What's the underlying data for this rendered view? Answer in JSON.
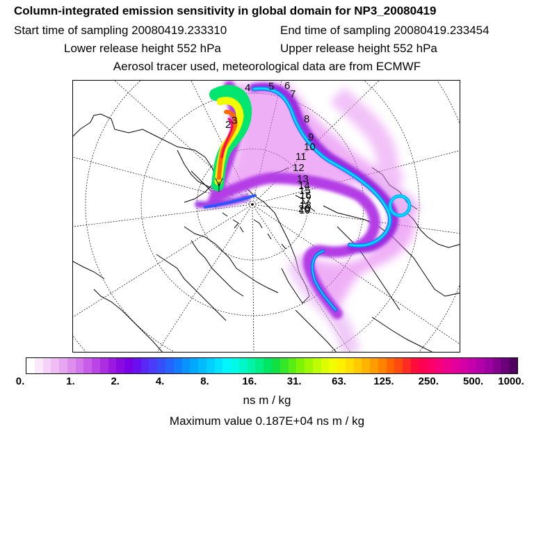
{
  "header": {
    "title": "Column-integrated emission sensitivity in global domain for NP3_20080419",
    "start_time": "Start time of sampling 20080419.233310",
    "end_time": "End time of sampling 20080419.233454",
    "lower_height": "Lower release height  552 hPa",
    "upper_height": "Upper release height  552 hPa",
    "tracer_info": "Aerosol tracer used, meteorological data are from ECMWF"
  },
  "map": {
    "projection": "polar stereographic",
    "trajectory_labels": [
      "2",
      "3",
      "4",
      "5",
      "6",
      "7",
      "8",
      "9",
      "10",
      "11",
      "12",
      "13",
      "14",
      "15",
      "16",
      "17",
      "18",
      "19",
      "20"
    ]
  },
  "colorbar": {
    "tick_labels": [
      "0.",
      "1.",
      "2.",
      "4.",
      "8.",
      "16.",
      "31.",
      "63.",
      "125.",
      "250.",
      "500.",
      "1000."
    ],
    "colors": [
      "#ffffff",
      "#fbe8fb",
      "#f5d2f7",
      "#efbcf3",
      "#e7a6f0",
      "#de8eec",
      "#d476ec",
      "#c85dea",
      "#bb44e6",
      "#ac2de2",
      "#9c19e0",
      "#8a0be1",
      "#7b00e6",
      "#6a10f0",
      "#5a28f5",
      "#4a3cf8",
      "#3550fb",
      "#2466fd",
      "#137cfe",
      "#0a92ff",
      "#00a8ff",
      "#00bcff",
      "#00d0ff",
      "#00e4ff",
      "#00f6ff",
      "#00fae6",
      "#00f8c8",
      "#00f4a8",
      "#00ee86",
      "#00e664",
      "#10e040",
      "#34e628",
      "#58ee14",
      "#7cf404",
      "#a0f800",
      "#c0fc00",
      "#dcfc00",
      "#f2fc00",
      "#fff000",
      "#ffde00",
      "#ffca00",
      "#ffb400",
      "#ff9c00",
      "#ff8200",
      "#ff6600",
      "#ff4a10",
      "#ff2c24",
      "#ff0c3c",
      "#ff0052",
      "#fc0068",
      "#f6007c",
      "#ee008e",
      "#e2009c",
      "#d400a6",
      "#c400ac",
      "#b200aa",
      "#9c00a0",
      "#860090",
      "#6c007a",
      "#520060"
    ],
    "unit": "ns m / kg"
  },
  "footer": {
    "max_value": "Maximum value  0.187E+04 ns m / kg"
  }
}
